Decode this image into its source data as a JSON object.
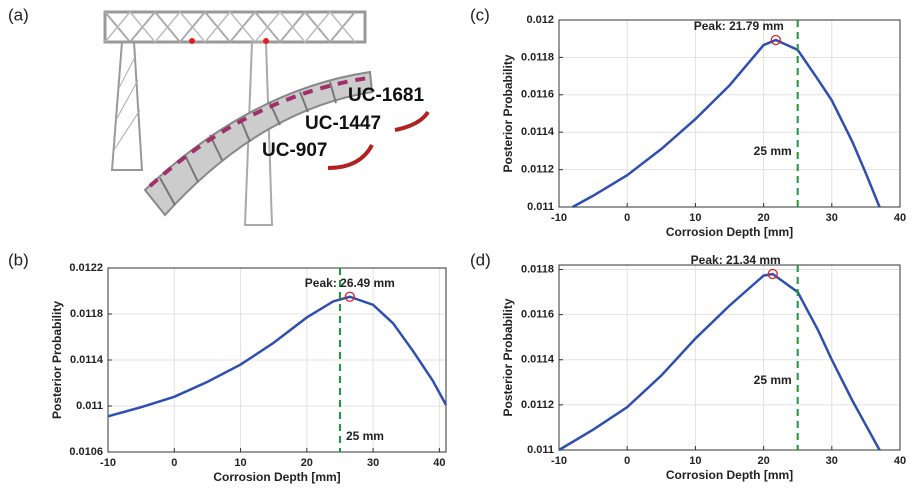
{
  "panel_a": {
    "label": "(a)",
    "labels": [
      "UC-1681",
      "UC-1447",
      "UC-907"
    ]
  },
  "chart_data": [
    {
      "type": "line",
      "panel_label": "(b)",
      "xlabel": "Corrosion Depth [mm]",
      "ylabel": "Posterior Probability",
      "x": [
        -10,
        -5,
        0,
        5,
        10,
        15,
        20,
        24,
        26.49,
        30,
        33,
        36,
        39,
        41
      ],
      "series": [
        {
          "color": "#2f4fb0",
          "values": [
            0.01091,
            0.01099,
            0.01108,
            0.01121,
            0.01136,
            0.01155,
            0.01177,
            0.01191,
            0.01195,
            0.01188,
            0.01172,
            0.01148,
            0.01122,
            0.01101
          ]
        }
      ],
      "xlim": [
        -10,
        41
      ],
      "ylim": [
        0.0106,
        0.0122
      ],
      "xticks": [
        -10,
        0,
        10,
        20,
        30,
        40
      ],
      "yticks": [
        0.0106,
        0.011,
        0.0114,
        0.0118,
        0.0122
      ],
      "grid": true,
      "threshold": {
        "value": 25,
        "label": "25 mm",
        "color": "#1a9a3a"
      },
      "peak": {
        "x": 26.49,
        "y": 0.01195,
        "label": "Peak: 26.49 mm",
        "color": "#e02020"
      }
    },
    {
      "type": "line",
      "panel_label": "(c)",
      "xlabel": "Corrosion Depth [mm]",
      "ylabel": "Posterior Probability",
      "x": [
        -8,
        -5,
        0,
        5,
        10,
        15,
        20,
        21.79,
        25,
        28,
        30,
        33,
        35,
        37
      ],
      "series": [
        {
          "color": "#2f4fb0",
          "values": [
            0.011,
            0.01106,
            0.01117,
            0.01131,
            0.01147,
            0.01165,
            0.011866,
            0.011893,
            0.01184,
            0.01168,
            0.01157,
            0.01135,
            0.01118,
            0.011
          ]
        }
      ],
      "xlim": [
        -10,
        40
      ],
      "ylim": [
        0.011,
        0.012
      ],
      "xticks": [
        -10,
        0,
        10,
        20,
        30,
        40
      ],
      "yticks": [
        0.011,
        0.0112,
        0.0114,
        0.0116,
        0.0118,
        0.012
      ],
      "grid": true,
      "threshold": {
        "value": 25,
        "label": "25 mm",
        "color": "#1a9a3a"
      },
      "peak": {
        "x": 21.79,
        "y": 0.011893,
        "label": "Peak: 21.79 mm",
        "color": "#e02020"
      }
    },
    {
      "type": "line",
      "panel_label": "(d)",
      "xlabel": "Corrosion Depth [mm]",
      "ylabel": "Posterior Probability",
      "x": [
        -10,
        -5,
        0,
        5,
        10,
        15,
        20,
        21.34,
        25,
        28,
        30,
        33,
        35,
        37
      ],
      "series": [
        {
          "color": "#2f4fb0",
          "values": [
            0.011,
            0.01109,
            0.01119,
            0.01133,
            0.011494,
            0.01164,
            0.011773,
            0.01178,
            0.0117,
            0.01153,
            0.0114,
            0.01122,
            0.01111,
            0.011
          ]
        }
      ],
      "xlim": [
        -10,
        40
      ],
      "ylim": [
        0.011,
        0.01182
      ],
      "xticks": [
        -10,
        0,
        10,
        20,
        30,
        40
      ],
      "yticks": [
        0.011,
        0.0112,
        0.0114,
        0.0116,
        0.0118
      ],
      "grid": true,
      "threshold": {
        "value": 25,
        "label": "25 mm",
        "color": "#1a9a3a"
      },
      "peak": {
        "x": 21.34,
        "y": 0.01178,
        "label": "Peak: 21.34 mm",
        "color": "#e02020"
      }
    }
  ]
}
